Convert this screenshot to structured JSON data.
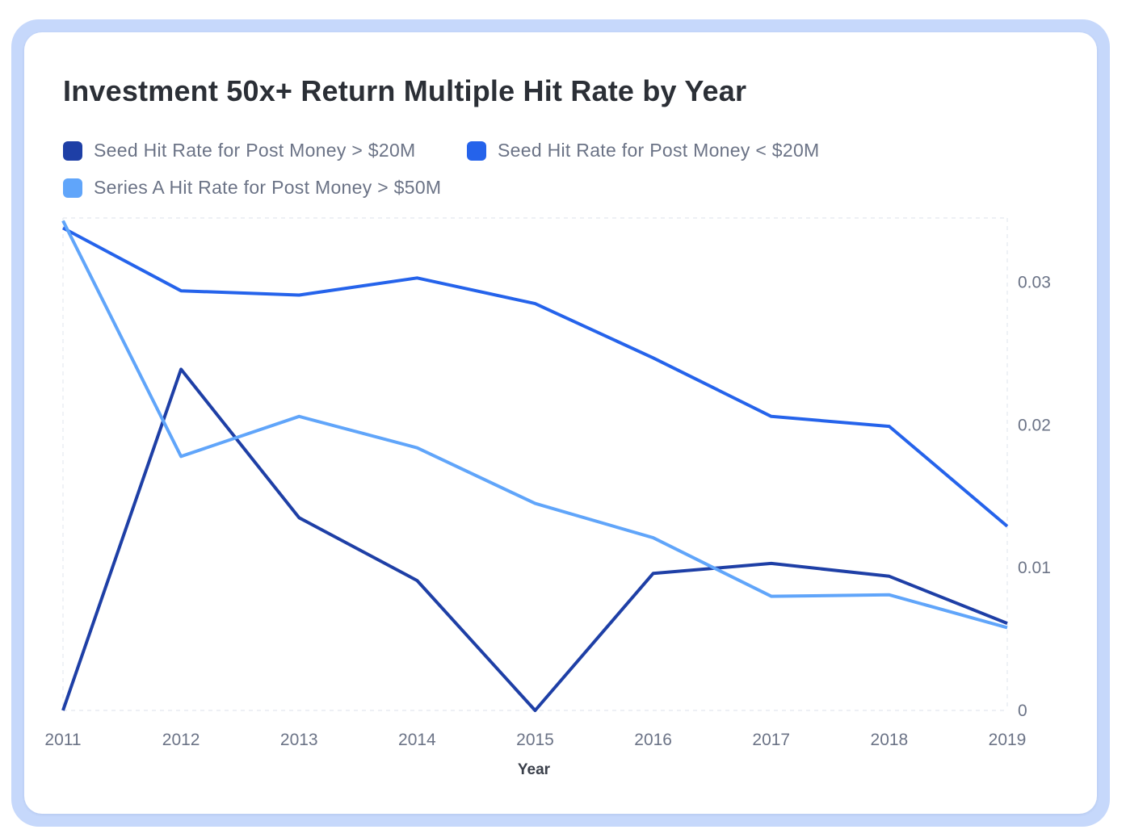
{
  "chart_data": {
    "type": "line",
    "title": "Investment 50x+ Return Multiple Hit Rate by Year",
    "xlabel": "Year",
    "ylabel": "",
    "x": [
      2011,
      2012,
      2013,
      2014,
      2015,
      2016,
      2017,
      2018,
      2019
    ],
    "ylim": [
      0,
      0.0345
    ],
    "yticks": [
      "0",
      "0.01",
      "0.02",
      "0.03"
    ],
    "yaxis_position": "right",
    "legend_position": "top-left",
    "grid": "dashed border only",
    "series": [
      {
        "name": "Seed Hit Rate for Post Money > $20M",
        "color": "#1e3fa6",
        "values": [
          0,
          0.0239,
          0.0135,
          0.0091,
          0,
          0.0096,
          0.0103,
          0.0094,
          0.0061
        ]
      },
      {
        "name": "Seed Hit Rate for Post Money < $20M",
        "color": "#2563eb",
        "values": [
          0.0338,
          0.0294,
          0.0291,
          0.0303,
          0.0285,
          0.0247,
          0.0206,
          0.0199,
          0.0129
        ]
      },
      {
        "name": "Series A Hit Rate for Post Money > $50M",
        "color": "#60a5fa",
        "values": [
          0.0343,
          0.0178,
          0.0206,
          0.0184,
          0.0145,
          0.0121,
          0.008,
          0.0081,
          0.0058
        ]
      }
    ]
  }
}
